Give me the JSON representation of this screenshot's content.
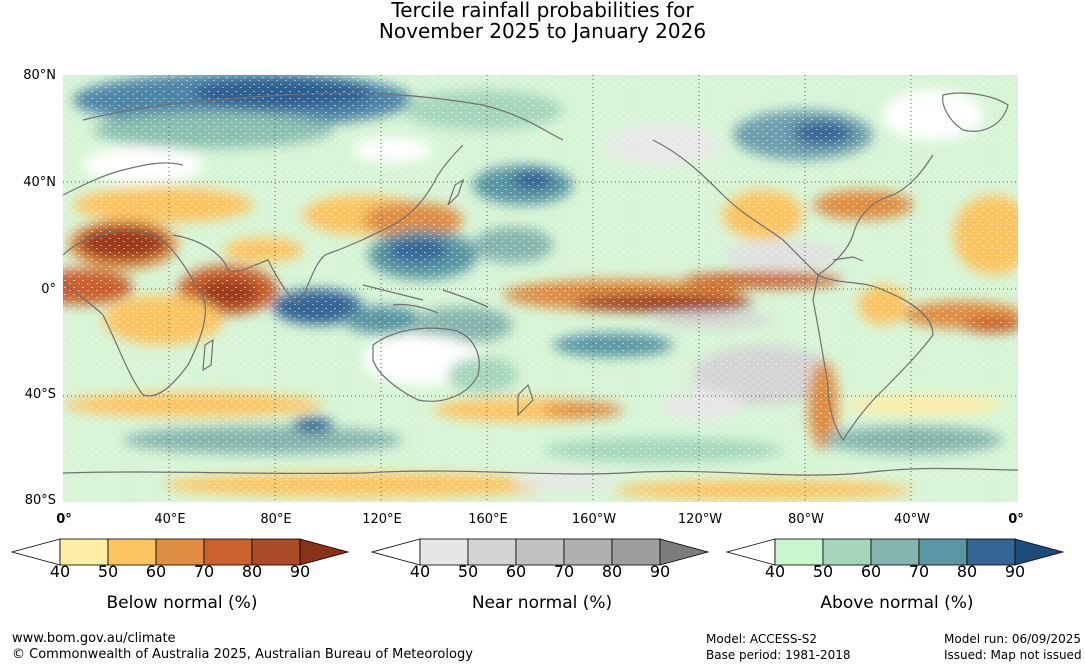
{
  "title": {
    "line1": "Tercile rainfall probabilities for",
    "line2": "November 2025 to January 2026"
  },
  "map": {
    "lat_labels": [
      "80°N",
      "40°N",
      "0°",
      "40°S",
      "80°S"
    ],
    "lon_labels": [
      "0°",
      "40°E",
      "80°E",
      "120°E",
      "160°E",
      "160°W",
      "120°W",
      "80°W",
      "40°W",
      "0°"
    ]
  },
  "legends": [
    {
      "name": "Below normal (%)",
      "ticks": [
        "40",
        "50",
        "60",
        "70",
        "80",
        "90"
      ],
      "colors": [
        "#ffffff",
        "#feeda4",
        "#fdc462",
        "#df8e43",
        "#c9622e",
        "#ab4a26",
        "#8a3119"
      ]
    },
    {
      "name": "Near normal (%)",
      "ticks": [
        "40",
        "50",
        "60",
        "70",
        "80",
        "90"
      ],
      "colors": [
        "#ffffff",
        "#e6e6e6",
        "#d4d4d4",
        "#c2c2c2",
        "#b0b0b0",
        "#9e9e9e",
        "#7c7c7c"
      ]
    },
    {
      "name": "Above normal (%)",
      "ticks": [
        "40",
        "50",
        "60",
        "70",
        "80",
        "90"
      ],
      "colors": [
        "#ffffff",
        "#c8f7cd",
        "#a5d6bc",
        "#86b5ae",
        "#5a96a3",
        "#356596",
        "#1d4b7b"
      ]
    }
  ],
  "footer": {
    "url": "www.bom.gov.au/climate",
    "copyright": "© Commonwealth of Australia 2025, Australian Bureau of Meteorology",
    "model": "Model: ACCESS-S2",
    "base_period": "Base period: 1981-2018",
    "model_run": "Model run: 06/09/2025",
    "issued": "Issued: Map not issued"
  }
}
